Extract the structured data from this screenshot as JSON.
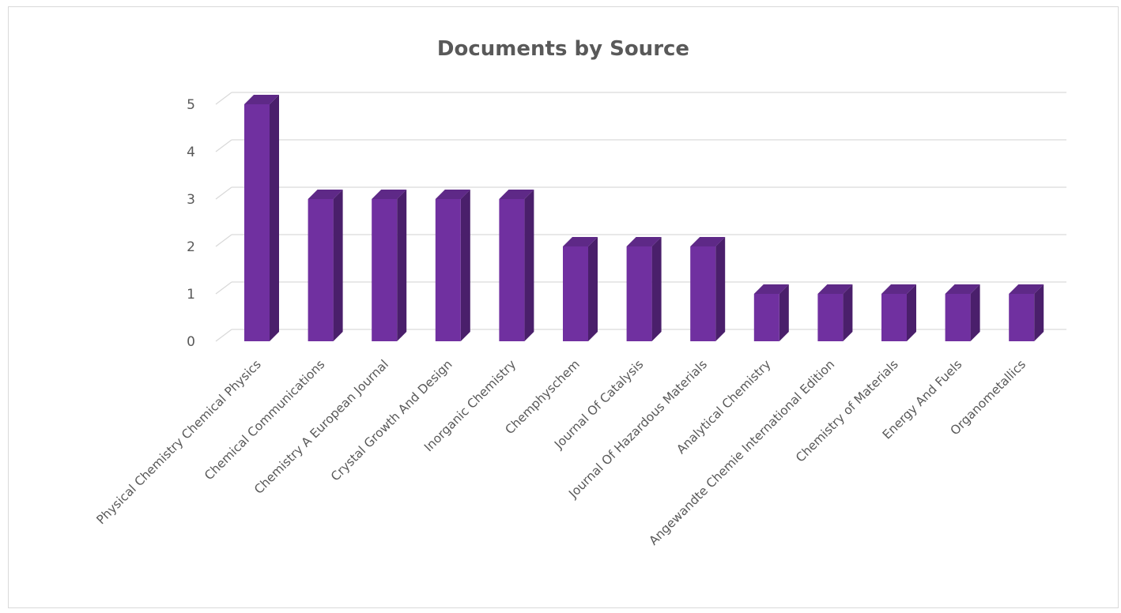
{
  "chart_data": {
    "type": "bar",
    "style": "3d-column",
    "title": "Documents by Source",
    "xlabel": "",
    "ylabel": "",
    "ylim": [
      0,
      5
    ],
    "yticks": [
      0,
      1,
      2,
      3,
      4,
      5
    ],
    "grid": true,
    "legend": "none",
    "categories": [
      "Physical Chemistry Chemical Physics",
      "Chemical Communications",
      "Chemistry A European Journal",
      "Crystal Growth And Design",
      "Inorganic Chemistry",
      "Chemphyschem",
      "Journal Of Catalysis",
      "Journal Of Hazardous Materials",
      "Analytical Chemistry",
      "Angewandte Chemie International Edition",
      "Chemistry of Materials",
      "Energy And Fuels",
      "Organometallics"
    ],
    "values": [
      5,
      3,
      3,
      3,
      3,
      2,
      2,
      2,
      1,
      1,
      1,
      1,
      1
    ],
    "colors": {
      "bar_front": "#7030a0",
      "bar_side": "#4a1f6b",
      "bar_top": "#5e2987",
      "grid": "#d9d9d9",
      "text": "#595959"
    }
  }
}
